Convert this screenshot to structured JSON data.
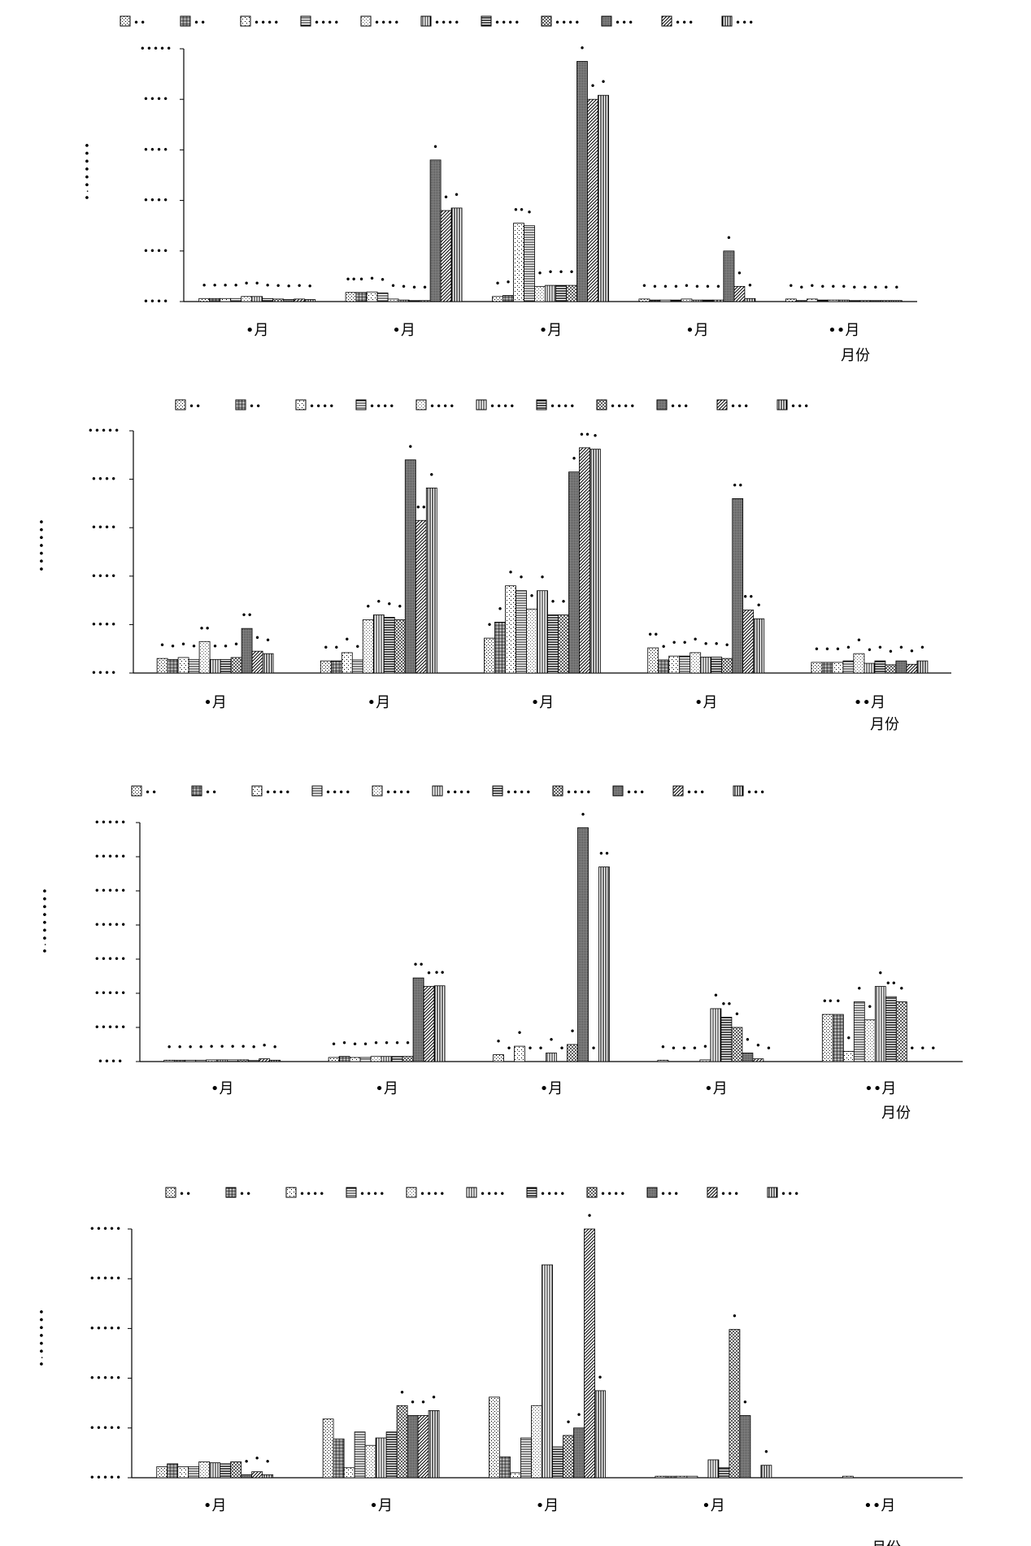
{
  "x_unit_label": "月份",
  "month_labels": [
    "•月",
    "•月",
    "•月",
    "•月",
    "••月"
  ],
  "legend_labels": [
    "••",
    "••",
    "••••",
    "••••",
    "••••",
    "••••",
    "••••",
    "••••",
    "•••",
    "•••",
    "•••"
  ],
  "chart_data": [
    {
      "type": "bar",
      "title": "",
      "ylabel": "•·••••••",
      "xlabel": "月份",
      "ylim": [
        0,
        5
      ],
      "y_tick_labels": [
        "••••",
        "••••",
        "••••",
        "••••",
        "••••",
        "•••••"
      ],
      "categories": [
        "•月",
        "•月",
        "•月",
        "•月",
        "••月"
      ],
      "series": [
        {
          "values": [
            0.06,
            0.18,
            0.1,
            0.05,
            0.05
          ],
          "labels": [
            "•",
            "••",
            "•",
            "•",
            "•"
          ]
        },
        {
          "values": [
            0.06,
            0.18,
            0.12,
            0.03,
            0.02
          ],
          "labels": [
            "•",
            "•",
            "•",
            "•",
            "•"
          ]
        },
        {
          "values": [
            0.06,
            0.19,
            1.55,
            0.03,
            0.05
          ],
          "labels": [
            "•",
            "•",
            "••",
            "•",
            "•"
          ]
        },
        {
          "values": [
            0.06,
            0.17,
            1.5,
            0.03,
            0.03
          ],
          "labels": [
            "•",
            "•",
            "•",
            "•",
            "•"
          ]
        },
        {
          "values": [
            0.1,
            0.05,
            0.3,
            0.05,
            0.03
          ],
          "labels": [
            "•",
            "•",
            "•",
            "•",
            "•"
          ]
        },
        {
          "values": [
            0.1,
            0.03,
            0.32,
            0.03,
            0.03
          ],
          "labels": [
            "•",
            "•",
            "•",
            "•",
            "•"
          ]
        },
        {
          "values": [
            0.06,
            0.02,
            0.32,
            0.03,
            0.02
          ],
          "labels": [
            "•",
            "•",
            "•",
            "•",
            "•"
          ]
        },
        {
          "values": [
            0.05,
            0.02,
            0.32,
            0.03,
            0.02
          ],
          "labels": [
            "•",
            "•",
            "•",
            "•",
            "•"
          ]
        },
        {
          "values": [
            0.04,
            2.8,
            4.75,
            1.0,
            0.02
          ],
          "labels": [
            "•",
            "•",
            "•",
            "•",
            "•"
          ]
        },
        {
          "values": [
            0.05,
            1.8,
            4.0,
            0.3,
            0.02
          ],
          "labels": [
            "•",
            "•",
            "•",
            "•",
            "•"
          ]
        },
        {
          "values": [
            0.04,
            1.85,
            4.08,
            0.06,
            0.02
          ],
          "labels": [
            "•",
            "•",
            "•",
            "•",
            "•"
          ]
        }
      ]
    },
    {
      "type": "bar",
      "title": "",
      "ylabel": "•••••••",
      "xlabel": "月份",
      "ylim": [
        0,
        5
      ],
      "y_tick_labels": [
        "••••",
        "••••",
        "••••",
        "••••",
        "••••",
        "•••••"
      ],
      "categories": [
        "•月",
        "•月",
        "•月",
        "•月",
        "••月"
      ],
      "series": [
        {
          "values": [
            0.3,
            0.25,
            0.72,
            0.52,
            0.22
          ],
          "labels": [
            "•",
            "•",
            "•",
            "••",
            "•"
          ]
        },
        {
          "values": [
            0.28,
            0.25,
            1.05,
            0.27,
            0.22
          ],
          "labels": [
            "•",
            "•",
            "•",
            "•",
            "•"
          ]
        },
        {
          "values": [
            0.32,
            0.42,
            1.8,
            0.35,
            0.22
          ],
          "labels": [
            "•",
            "•",
            "•",
            "•",
            "•"
          ]
        },
        {
          "values": [
            0.28,
            0.27,
            1.7,
            0.35,
            0.25
          ],
          "labels": [
            "•",
            "•",
            "•",
            "•",
            "•"
          ]
        },
        {
          "values": [
            0.65,
            1.1,
            1.32,
            0.42,
            0.4
          ],
          "labels": [
            "••",
            "•",
            "•",
            "•",
            "•"
          ]
        },
        {
          "values": [
            0.28,
            1.2,
            1.7,
            0.33,
            0.2
          ],
          "labels": [
            "•",
            "•",
            "•",
            "•",
            "•"
          ]
        },
        {
          "values": [
            0.28,
            1.15,
            1.2,
            0.33,
            0.25
          ],
          "labels": [
            "•",
            "•",
            "•",
            "•",
            "•"
          ]
        },
        {
          "values": [
            0.32,
            1.1,
            1.2,
            0.3,
            0.17
          ],
          "labels": [
            "•",
            "•",
            "•",
            "•",
            "•"
          ]
        },
        {
          "values": [
            0.92,
            4.4,
            4.15,
            3.6,
            0.25
          ],
          "labels": [
            "••",
            "•",
            "•",
            "••",
            "•"
          ]
        },
        {
          "values": [
            0.45,
            3.15,
            4.65,
            1.3,
            0.18
          ],
          "labels": [
            "•",
            "••",
            "••",
            "••",
            "•"
          ]
        },
        {
          "values": [
            0.4,
            3.82,
            4.62,
            1.12,
            0.25
          ],
          "labels": [
            "•",
            "•",
            "•",
            "•",
            "•"
          ]
        }
      ]
    },
    {
      "type": "bar",
      "title": "",
      "ylabel": "•·•••••••",
      "xlabel": "月份",
      "ylim": [
        0,
        7
      ],
      "y_tick_labels": [
        "••••",
        "•••••",
        "•••••",
        "•••••",
        "•••••",
        "•••••",
        "•••••",
        "•••••"
      ],
      "categories": [
        "•月",
        "•月",
        "•月",
        "•月",
        "••月"
      ],
      "series": [
        {
          "values": [
            0.04,
            0.12,
            0.2,
            0.04,
            1.38
          ],
          "labels": [
            "•",
            "•",
            "•",
            "•",
            "••"
          ]
        },
        {
          "values": [
            0.04,
            0.15,
            0.0,
            0.0,
            1.38
          ],
          "labels": [
            "•",
            "•",
            "•",
            "•",
            "•"
          ]
        },
        {
          "values": [
            0.04,
            0.12,
            0.45,
            0.0,
            0.3
          ],
          "labels": [
            "•",
            "•",
            "•",
            "•",
            "•"
          ]
        },
        {
          "values": [
            0.04,
            0.12,
            0.0,
            0.0,
            1.75
          ],
          "labels": [
            "•",
            "•",
            "•",
            "•",
            "•"
          ]
        },
        {
          "values": [
            0.05,
            0.15,
            0.0,
            0.05,
            1.22
          ],
          "labels": [
            "•",
            "•",
            "•",
            "•",
            "•"
          ]
        },
        {
          "values": [
            0.05,
            0.15,
            0.25,
            1.55,
            2.2
          ],
          "labels": [
            "•",
            "•",
            "•",
            "•",
            "•"
          ]
        },
        {
          "values": [
            0.05,
            0.15,
            0.0,
            1.3,
            1.9
          ],
          "labels": [
            "•",
            "•",
            "•",
            "••",
            "••"
          ]
        },
        {
          "values": [
            0.05,
            0.15,
            0.5,
            1.0,
            1.75
          ],
          "labels": [
            "•",
            "•",
            "•",
            "•",
            "•"
          ]
        },
        {
          "values": [
            0.03,
            2.45,
            6.85,
            0.25,
            0.0
          ],
          "labels": [
            "•",
            "••",
            "•",
            "•",
            "•"
          ]
        },
        {
          "values": [
            0.08,
            2.2,
            0.0,
            0.08,
            0.0
          ],
          "labels": [
            "•",
            "•",
            "•",
            "•",
            "•"
          ]
        },
        {
          "values": [
            0.04,
            2.22,
            5.7,
            0.0,
            0.0
          ],
          "labels": [
            "•",
            "••",
            "••",
            "•",
            "•"
          ]
        }
      ]
    },
    {
      "type": "bar",
      "title": "",
      "ylabel": "•·••••••",
      "xlabel": "月份",
      "ylim": [
        0,
        5
      ],
      "y_tick_labels": [
        "•••••",
        "•••••",
        "•••••",
        "•••••",
        "•••••",
        "•••••"
      ],
      "categories": [
        "•月",
        "•月",
        "•月",
        "•月",
        "••月"
      ],
      "series": [
        {
          "values": [
            0.22,
            1.18,
            1.62,
            0.03,
            0.0
          ],
          "labels": [
            "",
            "",
            "",
            "",
            ""
          ]
        },
        {
          "values": [
            0.28,
            0.78,
            0.42,
            0.03,
            0.0
          ],
          "labels": [
            "",
            "",
            "",
            "",
            ""
          ]
        },
        {
          "values": [
            0.22,
            0.2,
            0.1,
            0.03,
            0.03
          ],
          "labels": [
            "",
            "",
            "",
            "",
            ""
          ]
        },
        {
          "values": [
            0.22,
            0.92,
            0.8,
            0.03,
            0.0
          ],
          "labels": [
            "",
            "",
            "",
            "",
            ""
          ]
        },
        {
          "values": [
            0.32,
            0.65,
            1.45,
            0.0,
            0.0
          ],
          "labels": [
            "",
            "",
            "",
            "",
            ""
          ]
        },
        {
          "values": [
            0.3,
            0.8,
            4.28,
            0.36,
            0.0
          ],
          "labels": [
            "",
            "",
            "",
            "",
            ""
          ]
        },
        {
          "values": [
            0.28,
            0.92,
            0.62,
            0.2,
            0.0
          ],
          "labels": [
            "",
            "",
            "",
            "",
            ""
          ]
        },
        {
          "values": [
            0.32,
            1.45,
            0.85,
            2.98,
            0.0
          ],
          "labels": [
            "",
            "•",
            "•",
            "•",
            ""
          ]
        },
        {
          "values": [
            0.06,
            1.25,
            1.0,
            1.25,
            0.0
          ],
          "labels": [
            "•",
            "•",
            "•",
            "•",
            ""
          ]
        },
        {
          "values": [
            0.12,
            1.25,
            5.0,
            0.0,
            0.0
          ],
          "labels": [
            "•",
            "•",
            "•",
            "",
            ""
          ]
        },
        {
          "values": [
            0.06,
            1.35,
            1.75,
            0.25,
            0.0
          ],
          "labels": [
            "•",
            "•",
            "•",
            "•",
            ""
          ]
        }
      ]
    }
  ]
}
